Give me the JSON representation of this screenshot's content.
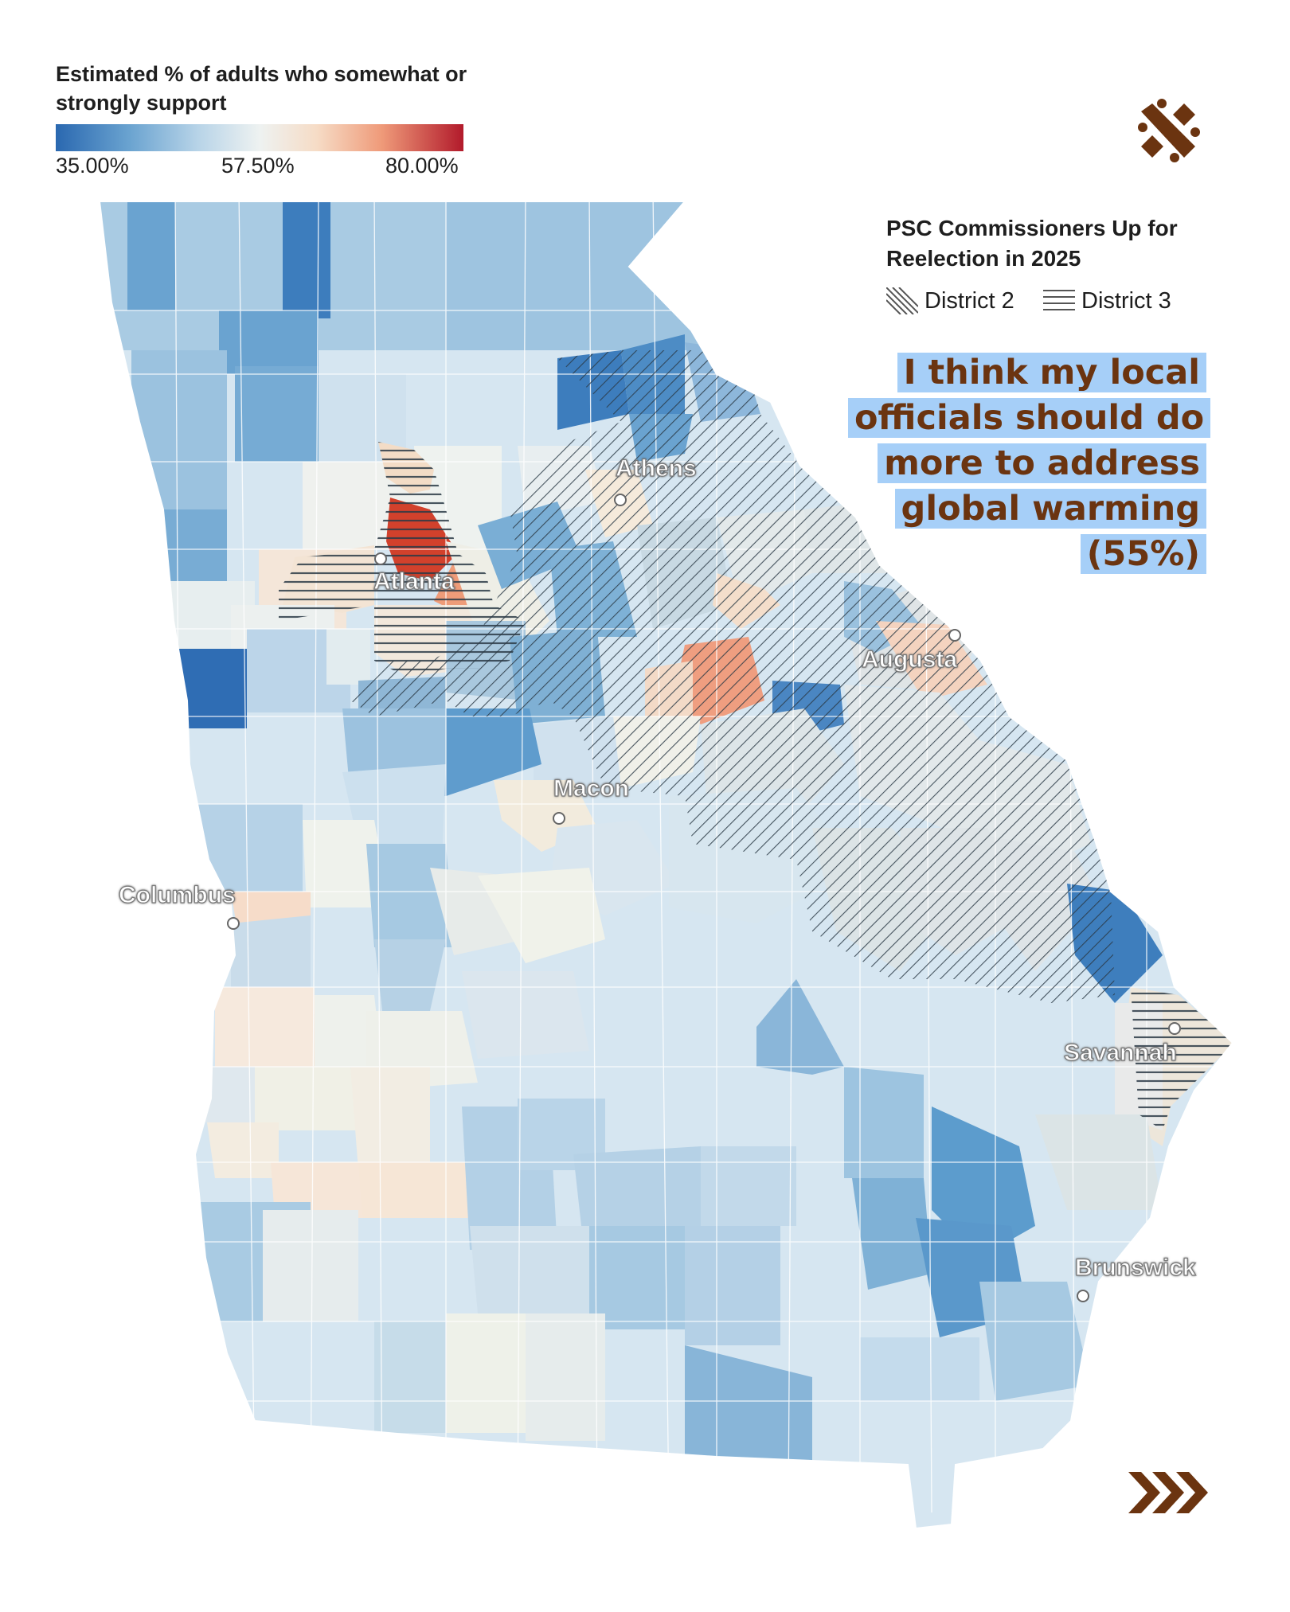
{
  "legend": {
    "title": "Estimated % of adults who somewhat or strongly support",
    "ticks": [
      "35.00%",
      "57.50%",
      "80.00%"
    ],
    "colors": {
      "low": "#2a68b0",
      "mid": "#eef2f1",
      "high": "#b21a2b"
    }
  },
  "districts_legend": {
    "title": "PSC Commissioners Up for Reelection in 2025",
    "district_2": "District 2",
    "district_3": "District 3"
  },
  "statement": {
    "text": "I think my local officials should do more to address global warming (55%)",
    "highlight_color": "#a6cff8",
    "text_color": "#6b3410"
  },
  "cities": {
    "athens": "Athens",
    "atlanta": "Atlanta",
    "augusta": "Augusta",
    "macon": "Macon",
    "columbus": "Columbus",
    "savannah": "Savannah",
    "brunswick": "Brunswick"
  },
  "icons": {
    "logo": "climate-logo-icon",
    "next": "triple-chevron-right-icon"
  },
  "brand_color": "#6b3410"
}
